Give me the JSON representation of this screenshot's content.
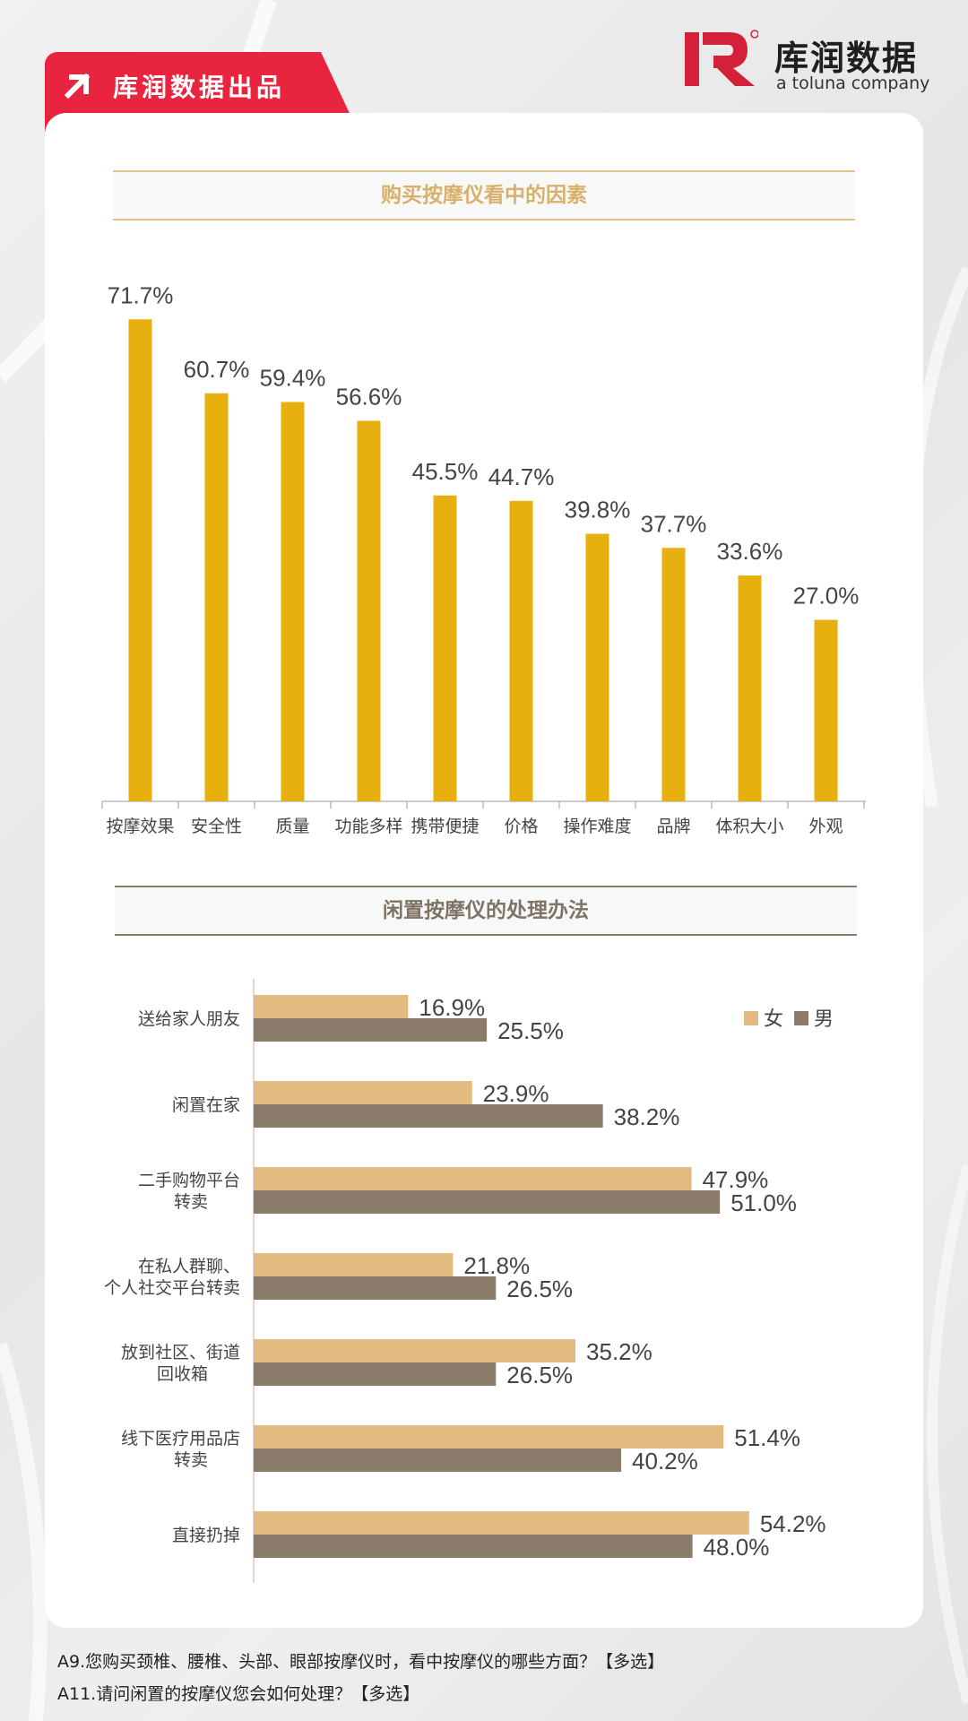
{
  "header": {
    "source_label": "库润数据出品",
    "logo_name": "库润数据",
    "logo_tagline": "a toluna company",
    "brand_color": "#e8243f"
  },
  "chart_data": [
    {
      "type": "bar",
      "title": "购买按摩仪看中的因素",
      "categories": [
        "按摩效果",
        "安全性",
        "质量",
        "功能多样",
        "携带便捷",
        "价格",
        "操作难度",
        "品牌",
        "体积大小",
        "外观"
      ],
      "values": [
        71.7,
        60.7,
        59.4,
        56.6,
        45.5,
        44.7,
        39.8,
        37.7,
        33.6,
        27.0
      ],
      "value_labels": [
        "71.7%",
        "60.7%",
        "59.4%",
        "56.6%",
        "45.5%",
        "44.7%",
        "39.8%",
        "37.7%",
        "33.6%",
        "27.0%"
      ],
      "ylim": [
        0,
        80
      ],
      "color": "#e8b00e",
      "grid": false
    },
    {
      "type": "bar",
      "orientation": "horizontal",
      "title": "闲置按摩仪的处理办法",
      "categories": [
        [
          "送给家人朋友"
        ],
        [
          "闲置在家"
        ],
        [
          "二手购物平台",
          "转卖"
        ],
        [
          "在私人群聊、",
          "个人社交平台转卖"
        ],
        [
          "放到社区、街道",
          "回收箱"
        ],
        [
          "线下医疗用品店",
          "转卖"
        ],
        [
          "直接扔掉"
        ]
      ],
      "series": [
        {
          "name": "女",
          "color": "#e2bb80",
          "values": [
            16.9,
            23.9,
            47.9,
            21.8,
            35.2,
            51.4,
            54.2
          ],
          "value_labels": [
            "16.9%",
            "23.9%",
            "47.9%",
            "21.8%",
            "35.2%",
            "51.4%",
            "54.2%"
          ]
        },
        {
          "name": "男",
          "color": "#8a7b6a",
          "values": [
            25.5,
            38.2,
            51.0,
            26.5,
            26.5,
            40.2,
            48.0
          ],
          "value_labels": [
            "25.5%",
            "38.2%",
            "51.0%",
            "26.5%",
            "26.5%",
            "40.2%",
            "48.0%"
          ]
        }
      ],
      "xlim": [
        0,
        60
      ],
      "legend": "top-right",
      "grid": false
    }
  ],
  "footer": {
    "questions": [
      "A9.您购买颈椎、腰椎、头部、眼部按摩仪时，看中按摩仪的哪些方面？【多选】",
      "A11.请问闲置的按摩仪您会如何处理？【多选】"
    ]
  }
}
